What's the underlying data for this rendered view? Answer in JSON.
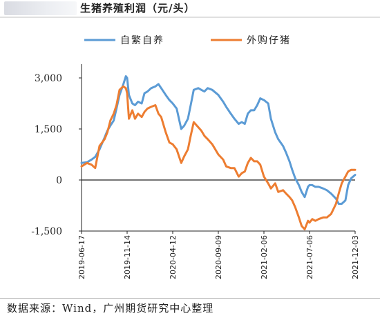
{
  "header": {
    "title": "生猪养殖利润（元/头）"
  },
  "footer": {
    "source": "数据来源：Wind，广州期货研究中心整理"
  },
  "chart_data": {
    "type": "line",
    "title": "生猪养殖利润（元/头）",
    "xlabel": "",
    "ylabel": "",
    "ylim": [
      -1500,
      3000
    ],
    "yticks": [
      3000,
      1500,
      0,
      -1500
    ],
    "ytick_labels": [
      "3,000",
      "1,500",
      "0",
      "-1,500"
    ],
    "xlim": [
      "2019-06-17",
      "2021-12-03"
    ],
    "xticks": [
      "2019-06-17",
      "2019-11-14",
      "2020-04-12",
      "2020-09-09",
      "2021-02-06",
      "2021-07-06",
      "2021-12-03"
    ],
    "legend": "top",
    "grid": false,
    "series": [
      {
        "name": "自繁自养",
        "color": "#5b9bd5",
        "x": [
          "2019-06-17",
          "2019-07-05",
          "2019-07-20",
          "2019-08-01",
          "2019-08-15",
          "2019-09-01",
          "2019-09-10",
          "2019-09-20",
          "2019-10-01",
          "2019-10-10",
          "2019-10-20",
          "2019-11-01",
          "2019-11-10",
          "2019-11-14",
          "2019-11-20",
          "2019-12-01",
          "2019-12-10",
          "2019-12-20",
          "2020-01-01",
          "2020-01-10",
          "2020-01-20",
          "2020-02-01",
          "2020-02-15",
          "2020-02-25",
          "2020-03-05",
          "2020-03-20",
          "2020-04-01",
          "2020-04-12",
          "2020-04-25",
          "2020-05-10",
          "2020-05-20",
          "2020-06-01",
          "2020-06-10",
          "2020-06-20",
          "2020-07-05",
          "2020-07-15",
          "2020-07-25",
          "2020-08-05",
          "2020-08-20",
          "2020-09-09",
          "2020-09-25",
          "2020-10-05",
          "2020-10-20",
          "2020-11-01",
          "2020-11-15",
          "2020-11-25",
          "2020-12-05",
          "2020-12-15",
          "2020-12-25",
          "2021-01-05",
          "2021-01-15",
          "2021-01-25",
          "2021-02-06",
          "2021-02-20",
          "2021-03-01",
          "2021-03-15",
          "2021-03-25",
          "2021-04-10",
          "2021-04-20",
          "2021-05-01",
          "2021-05-10",
          "2021-05-20",
          "2021-06-01",
          "2021-06-10",
          "2021-06-20",
          "2021-07-01",
          "2021-07-06",
          "2021-07-15",
          "2021-07-25",
          "2021-08-05",
          "2021-08-20",
          "2021-09-01",
          "2021-09-15",
          "2021-10-01",
          "2021-10-10",
          "2021-10-20",
          "2021-11-01",
          "2021-11-10",
          "2021-11-20",
          "2021-12-03"
        ],
        "y": [
          500,
          520,
          600,
          680,
          900,
          1250,
          1450,
          1600,
          1750,
          2100,
          2500,
          2800,
          3050,
          3000,
          2500,
          2250,
          2200,
          2300,
          2250,
          2550,
          2600,
          2700,
          2750,
          2820,
          2700,
          2500,
          2350,
          2250,
          2100,
          1500,
          1600,
          1800,
          2200,
          2650,
          2700,
          2650,
          2600,
          2700,
          2650,
          2500,
          2300,
          2150,
          1950,
          1800,
          1650,
          1700,
          1650,
          1950,
          2050,
          2050,
          2200,
          2400,
          2350,
          2250,
          1800,
          1400,
          1200,
          1000,
          800,
          550,
          300,
          50,
          -150,
          -350,
          -500,
          -200,
          -150,
          -150,
          -200,
          -200,
          -250,
          -300,
          -400,
          -550,
          -700,
          -700,
          -600,
          -150,
          50,
          150
        ]
      },
      {
        "name": "外购仔猪",
        "color": "#ed7d31",
        "x": [
          "2019-06-17",
          "2019-07-05",
          "2019-07-20",
          "2019-08-01",
          "2019-08-15",
          "2019-09-01",
          "2019-09-10",
          "2019-09-20",
          "2019-10-01",
          "2019-10-10",
          "2019-10-20",
          "2019-11-01",
          "2019-11-10",
          "2019-11-14",
          "2019-11-20",
          "2019-12-01",
          "2019-12-10",
          "2019-12-20",
          "2020-01-01",
          "2020-01-10",
          "2020-01-20",
          "2020-02-01",
          "2020-02-15",
          "2020-02-25",
          "2020-03-05",
          "2020-03-20",
          "2020-04-01",
          "2020-04-12",
          "2020-04-25",
          "2020-05-10",
          "2020-05-20",
          "2020-06-01",
          "2020-06-10",
          "2020-06-20",
          "2020-07-05",
          "2020-07-15",
          "2020-07-25",
          "2020-08-05",
          "2020-08-20",
          "2020-09-09",
          "2020-09-25",
          "2020-10-05",
          "2020-10-20",
          "2020-11-01",
          "2020-11-15",
          "2020-11-25",
          "2020-12-05",
          "2020-12-15",
          "2020-12-25",
          "2021-01-05",
          "2021-01-15",
          "2021-01-25",
          "2021-02-06",
          "2021-02-20",
          "2021-03-01",
          "2021-03-15",
          "2021-03-25",
          "2021-04-10",
          "2021-04-20",
          "2021-05-01",
          "2021-05-10",
          "2021-05-20",
          "2021-06-01",
          "2021-06-10",
          "2021-06-20",
          "2021-07-01",
          "2021-07-06",
          "2021-07-15",
          "2021-07-25",
          "2021-08-05",
          "2021-08-20",
          "2021-09-01",
          "2021-09-15",
          "2021-10-01",
          "2021-10-10",
          "2021-10-20",
          "2021-11-01",
          "2021-11-10",
          "2021-11-20",
          "2021-12-03"
        ],
        "y": [
          400,
          500,
          450,
          350,
          1000,
          1200,
          1400,
          1750,
          1950,
          2200,
          2650,
          2750,
          2700,
          2550,
          1800,
          2050,
          1800,
          1950,
          1850,
          2000,
          2100,
          2150,
          2200,
          1950,
          1850,
          1400,
          1100,
          1050,
          900,
          500,
          700,
          900,
          1300,
          1700,
          1550,
          1450,
          1300,
          1200,
          1050,
          750,
          600,
          400,
          350,
          350,
          100,
          200,
          250,
          500,
          650,
          550,
          550,
          450,
          100,
          -100,
          -250,
          -100,
          -350,
          -300,
          -400,
          -500,
          -600,
          -800,
          -1100,
          -1350,
          -1450,
          -1200,
          -1250,
          -1150,
          -1200,
          -1150,
          -1100,
          -1100,
          -1000,
          -700,
          -400,
          -100,
          100,
          250,
          300,
          300
        ]
      }
    ]
  }
}
